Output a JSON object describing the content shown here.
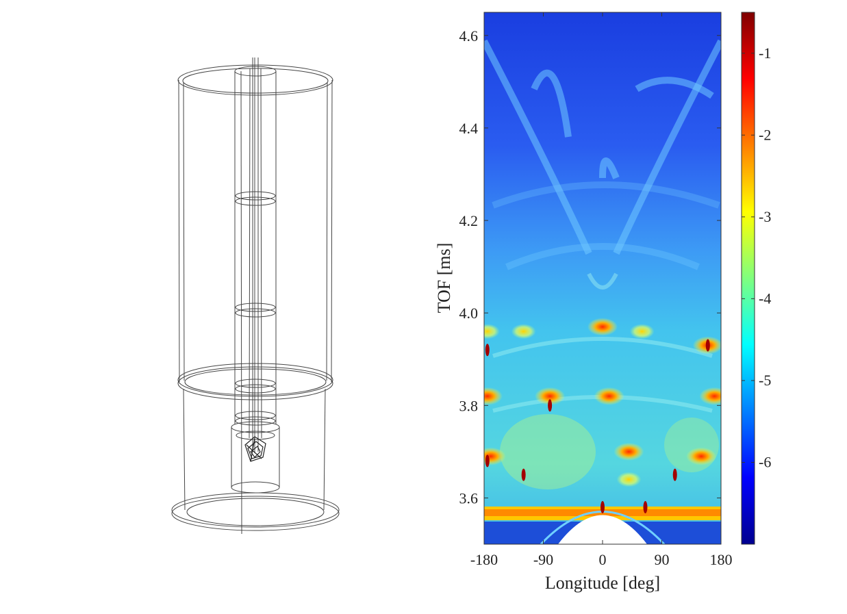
{
  "chart_data": [
    {
      "type": "diagram",
      "title": "",
      "description_visible_text": []
    },
    {
      "type": "heatmap",
      "title": "",
      "xlabel": "Longitude [deg]",
      "ylabel": "TOF [ms]",
      "xlim": [
        -180,
        180
      ],
      "ylim": [
        3.5,
        4.65
      ],
      "xticks": [
        -180,
        -90,
        0,
        90,
        180
      ],
      "xtick_labels": [
        "-180",
        "-90",
        "0",
        "90",
        "180"
      ],
      "yticks": [
        3.6,
        3.8,
        4.0,
        4.2,
        4.4,
        4.6
      ],
      "ytick_labels": [
        "3.6",
        "3.8",
        "4.0",
        "4.2",
        "4.4",
        "4.6"
      ],
      "colorbar": {
        "colormap": "jet",
        "clim": [
          -7,
          -0.5
        ],
        "ticks": [
          -1,
          -2,
          -3,
          -4,
          -5,
          -6
        ],
        "tick_labels": [
          "-1",
          "-2",
          "-3",
          "-4",
          "-5",
          "-6"
        ]
      },
      "hotspots": [
        {
          "lon": -175,
          "tof": 3.82,
          "level": -1.8
        },
        {
          "lon": -80,
          "tof": 3.82,
          "level": -2.2
        },
        {
          "lon": 10,
          "tof": 3.82,
          "level": -1.4
        },
        {
          "lon": 170,
          "tof": 3.82,
          "level": -1.6
        },
        {
          "lon": -175,
          "tof": 3.96,
          "level": -2.8
        },
        {
          "lon": -120,
          "tof": 3.96,
          "level": -3.0
        },
        {
          "lon": 0,
          "tof": 3.97,
          "level": -2.4
        },
        {
          "lon": 60,
          "tof": 3.96,
          "level": -3.2
        },
        {
          "lon": 40,
          "tof": 3.7,
          "level": -1.8
        },
        {
          "lon": 150,
          "tof": 3.69,
          "level": -1.7
        },
        {
          "lon": -170,
          "tof": 3.69,
          "level": -1.3
        },
        {
          "lon": 40,
          "tof": 3.64,
          "level": -2.6
        },
        {
          "lon": 160,
          "tof": 3.93,
          "level": -1.5
        }
      ],
      "band": {
        "tof": 3.57,
        "level": -2.2
      }
    }
  ]
}
